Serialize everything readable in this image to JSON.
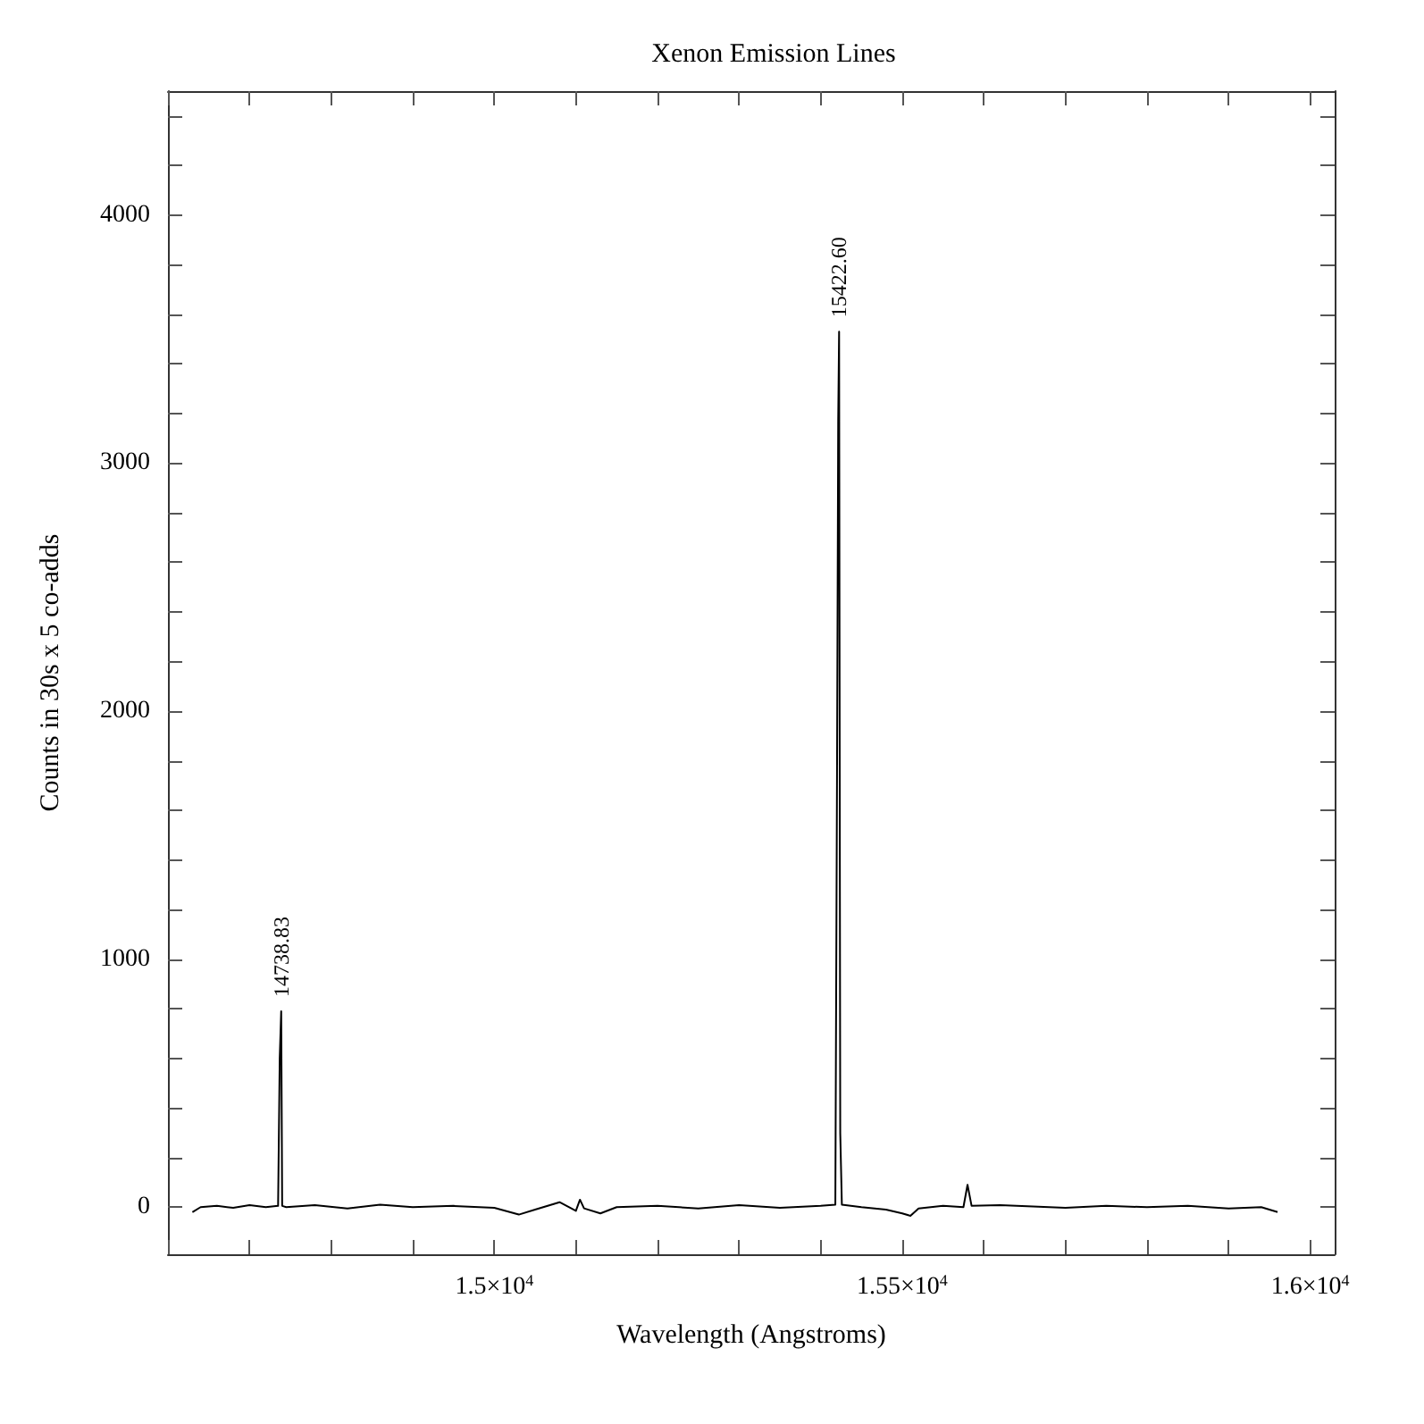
{
  "chart_data": {
    "type": "line",
    "title": "Xenon Emission Lines",
    "xlabel": "Wavelength (Angstroms)",
    "ylabel": "Counts in 30s x 5 co-adds",
    "x": [
      14630,
      14640,
      14660,
      14680,
      14700,
      14720,
      14735,
      14737,
      14738.8,
      14740,
      14745,
      14780,
      14820,
      14860,
      14900,
      14950,
      15000,
      15030,
      15050,
      15080,
      15100,
      15105,
      15110,
      15130,
      15150,
      15200,
      15250,
      15300,
      15350,
      15400,
      15418,
      15420,
      15421.5,
      15422.6,
      15424,
      15426,
      15450,
      15480,
      15500,
      15510,
      15520,
      15550,
      15575,
      15580,
      15585,
      15620,
      15700,
      15750,
      15800,
      15850,
      15900,
      15940,
      15960
    ],
    "series": [
      {
        "color": "#000000",
        "values": [
          -20,
          0,
          5,
          -3,
          8,
          0,
          5,
          600,
          790,
          5,
          0,
          8,
          -5,
          10,
          0,
          5,
          -3,
          -30,
          -10,
          20,
          -15,
          30,
          -5,
          -25,
          0,
          5,
          -5,
          8,
          -3,
          5,
          10,
          1700,
          3170,
          3530,
          300,
          10,
          0,
          -10,
          -25,
          -35,
          -5,
          5,
          0,
          90,
          5,
          8,
          -3,
          5,
          0,
          5,
          -5,
          0,
          -20
        ]
      }
    ],
    "xlim": [
      14600,
      16030
    ],
    "ylim": [
      -190,
      4500
    ],
    "xticks": [
      {
        "value": 14600,
        "label": null
      },
      {
        "value": 14700,
        "label": null
      },
      {
        "value": 14800,
        "label": null
      },
      {
        "value": 14900,
        "label": null
      },
      {
        "value": 15000,
        "label": "1.5×10$^{4}$"
      },
      {
        "value": 15100,
        "label": null
      },
      {
        "value": 15200,
        "label": null
      },
      {
        "value": 15300,
        "label": null
      },
      {
        "value": 15400,
        "label": null
      },
      {
        "value": 15500,
        "label": "1.55×10$^{4}$"
      },
      {
        "value": 15600,
        "label": null
      },
      {
        "value": 15700,
        "label": null
      },
      {
        "value": 15800,
        "label": null
      },
      {
        "value": 15900,
        "label": null
      },
      {
        "value": 16000,
        "label": "1.6×10$^{4}$"
      }
    ],
    "yticks": [
      0,
      {
        "value": 200,
        "label": null
      },
      {
        "value": 400,
        "label": null
      },
      {
        "value": 600,
        "label": null
      },
      {
        "value": 800,
        "label": null
      },
      1000,
      {
        "value": 1200,
        "label": null
      },
      {
        "value": 1400,
        "label": null
      },
      {
        "value": 1600,
        "label": null
      },
      {
        "value": 1800,
        "label": null
      },
      2000,
      {
        "value": 2200,
        "label": null
      },
      {
        "value": 2400,
        "label": null
      },
      {
        "value": 2600,
        "label": null
      },
      {
        "value": 2800,
        "label": null
      },
      3000,
      {
        "value": 3200,
        "label": null
      },
      {
        "value": 3400,
        "label": null
      },
      {
        "value": 3600,
        "label": null
      },
      {
        "value": 3800,
        "label": null
      },
      4000,
      {
        "value": 4200,
        "label": null
      },
      {
        "value": 4400,
        "label": null
      }
    ],
    "annotations": [
      {
        "text": "14738.83",
        "x": 14738.8,
        "y": 790
      },
      {
        "text": "15422.60",
        "x": 15422.6,
        "y": 3530
      }
    ],
    "marker": "none",
    "line_style": "solid"
  }
}
